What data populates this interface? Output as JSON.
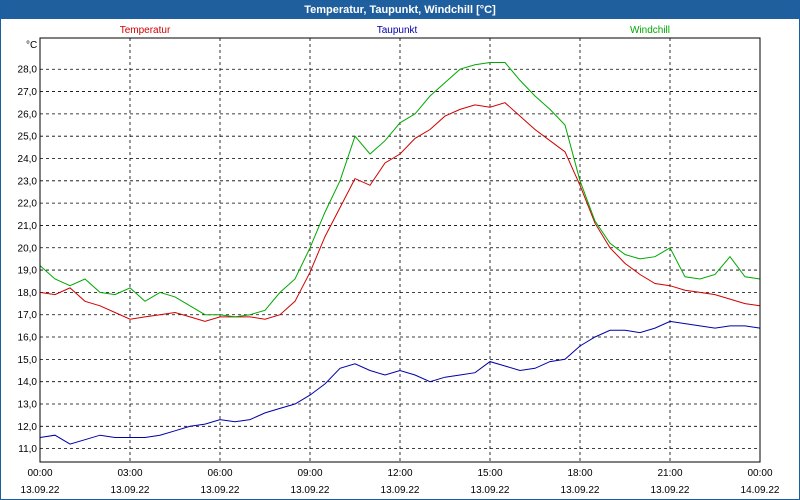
{
  "window": {
    "title": "Temperatur, Taupunkt, Windchill [°C]"
  },
  "chart_data": {
    "type": "line",
    "title": "Temperatur, Taupunkt, Windchill [°C]",
    "ylabel": "°C",
    "ylim": [
      10.4,
      29.4
    ],
    "yticks": [
      "11,0",
      "12,0",
      "13,0",
      "14,0",
      "15,0",
      "16,0",
      "17,0",
      "18,0",
      "19,0",
      "20,0",
      "21,0",
      "22,0",
      "23,0",
      "24,0",
      "25,0",
      "26,0",
      "27,0",
      "28,0"
    ],
    "xlim": [
      0,
      24
    ],
    "xticks": [
      {
        "time": "00:00",
        "date": "13.09.22"
      },
      {
        "time": "03:00",
        "date": "13.09.22"
      },
      {
        "time": "06:00",
        "date": "13.09.22"
      },
      {
        "time": "09:00",
        "date": "13.09.22"
      },
      {
        "time": "12:00",
        "date": "13.09.22"
      },
      {
        "time": "15:00",
        "date": "13.09.22"
      },
      {
        "time": "18:00",
        "date": "13.09.22"
      },
      {
        "time": "21:00",
        "date": "13.09.22"
      },
      {
        "time": "00:00",
        "date": "14.09.22"
      }
    ],
    "grid": true,
    "legend": "top",
    "series": [
      {
        "name": "Temperatur",
        "color": "#d00000",
        "x": [
          0,
          0.5,
          1,
          1.5,
          2,
          2.5,
          3,
          3.5,
          4,
          4.5,
          5,
          5.5,
          6,
          6.5,
          7,
          7.5,
          8,
          8.5,
          9,
          9.5,
          10,
          10.5,
          11,
          11.5,
          12,
          12.5,
          13,
          13.5,
          14,
          14.5,
          15,
          15.5,
          16,
          16.5,
          17,
          17.5,
          18,
          18.5,
          19,
          19.5,
          20,
          20.5,
          21,
          21.5,
          22,
          22.5,
          23,
          23.5,
          24
        ],
        "values": [
          18.0,
          17.9,
          18.2,
          17.6,
          17.4,
          17.1,
          16.8,
          16.9,
          17.0,
          17.1,
          16.9,
          16.7,
          16.9,
          16.9,
          16.9,
          16.8,
          17.0,
          17.6,
          18.9,
          20.5,
          21.8,
          23.1,
          22.8,
          23.8,
          24.2,
          24.9,
          25.3,
          25.9,
          26.2,
          26.4,
          26.3,
          26.5,
          25.9,
          25.3,
          24.8,
          24.3,
          22.8,
          21.1,
          20.0,
          19.3,
          18.8,
          18.4,
          18.3,
          18.1,
          18.0,
          17.9,
          17.7,
          17.5,
          17.4
        ]
      },
      {
        "name": "Taupunkt",
        "color": "#0000a8",
        "x": [
          0,
          0.5,
          1,
          1.5,
          2,
          2.5,
          3,
          3.5,
          4,
          4.5,
          5,
          5.5,
          6,
          6.5,
          7,
          7.5,
          8,
          8.5,
          9,
          9.5,
          10,
          10.5,
          11,
          11.5,
          12,
          12.5,
          13,
          13.5,
          14,
          14.5,
          15,
          15.5,
          16,
          16.5,
          17,
          17.5,
          18,
          18.5,
          19,
          19.5,
          20,
          20.5,
          21,
          21.5,
          22,
          22.5,
          23,
          23.5,
          24
        ],
        "values": [
          11.5,
          11.6,
          11.2,
          11.4,
          11.6,
          11.5,
          11.5,
          11.5,
          11.6,
          11.8,
          12.0,
          12.1,
          12.3,
          12.2,
          12.3,
          12.6,
          12.8,
          13.0,
          13.4,
          13.9,
          14.6,
          14.8,
          14.5,
          14.3,
          14.5,
          14.3,
          14.0,
          14.2,
          14.3,
          14.4,
          14.9,
          14.7,
          14.5,
          14.6,
          14.9,
          15.0,
          15.6,
          16.0,
          16.3,
          16.3,
          16.2,
          16.4,
          16.7,
          16.6,
          16.5,
          16.4,
          16.5,
          16.5,
          16.4
        ]
      },
      {
        "name": "Windchill",
        "color": "#00a800",
        "x": [
          0,
          0.5,
          1,
          1.5,
          2,
          2.5,
          3,
          3.5,
          4,
          4.5,
          5,
          5.5,
          6,
          6.5,
          7,
          7.5,
          8,
          8.5,
          9,
          9.5,
          10,
          10.5,
          11,
          11.5,
          12,
          12.5,
          13,
          13.5,
          14,
          14.5,
          15,
          15.5,
          16,
          16.5,
          17,
          17.5,
          18,
          18.5,
          19,
          19.5,
          20,
          20.5,
          21,
          21.5,
          22,
          22.5,
          23,
          23.5,
          24
        ],
        "values": [
          19.2,
          18.6,
          18.3,
          18.6,
          18.0,
          17.9,
          18.2,
          17.6,
          18.0,
          17.8,
          17.4,
          17.0,
          17.0,
          16.9,
          17.0,
          17.2,
          18.0,
          18.6,
          20.0,
          21.6,
          23.0,
          25.0,
          24.2,
          24.8,
          25.6,
          26.0,
          26.8,
          27.4,
          28.0,
          28.2,
          28.3,
          28.3,
          27.5,
          26.8,
          26.2,
          25.5,
          23.0,
          21.2,
          20.2,
          19.7,
          19.5,
          19.6,
          20.0,
          18.7,
          18.6,
          18.8,
          19.6,
          18.7,
          18.6
        ]
      }
    ]
  }
}
